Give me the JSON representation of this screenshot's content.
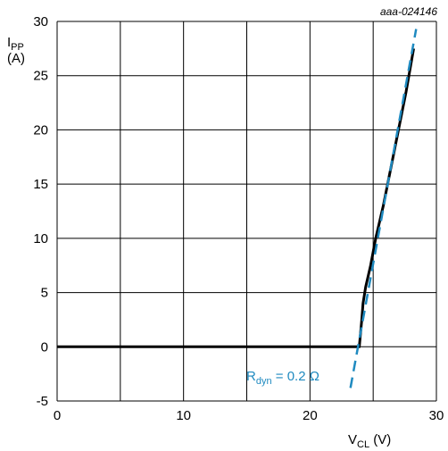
{
  "figure_id": "aaa-024146",
  "colors": {
    "measured": "#000000",
    "fit": "#1f8ac0",
    "grid": "#000000"
  },
  "chart_data": {
    "type": "line",
    "grid": true,
    "xlim": [
      0,
      30
    ],
    "ylim": [
      -5,
      30
    ],
    "x_ticks": [
      0,
      10,
      20,
      30
    ],
    "y_ticks": [
      -5,
      0,
      5,
      10,
      15,
      20,
      25,
      30
    ],
    "x_grid": [
      0,
      5,
      10,
      15,
      20,
      25,
      30
    ],
    "y_grid": [
      -5,
      0,
      5,
      10,
      15,
      20,
      25,
      30
    ],
    "xlabel": {
      "main": "V",
      "sub": "CL",
      "unit": " (V)"
    },
    "ylabel": {
      "main": "I",
      "sub": "PP",
      "unit": "(A)"
    },
    "series": [
      {
        "style": "solid",
        "x": [
          0,
          20,
          23.9,
          24.1,
          24.2,
          24.4,
          24.8,
          25.2,
          25.8,
          26.4,
          27.0,
          27.6,
          28.2
        ],
        "y": [
          0,
          0,
          0,
          2.5,
          4.0,
          5.5,
          7.5,
          10.0,
          13.0,
          16.5,
          20.0,
          23.5,
          27.5
        ]
      },
      {
        "style": "dashed",
        "x": [
          23.2,
          28.4
        ],
        "y": [
          -3.8,
          29.3
        ]
      }
    ],
    "annotation": {
      "main": "R",
      "sub": "dyn",
      "rest": " = 0.2 Ω"
    }
  }
}
